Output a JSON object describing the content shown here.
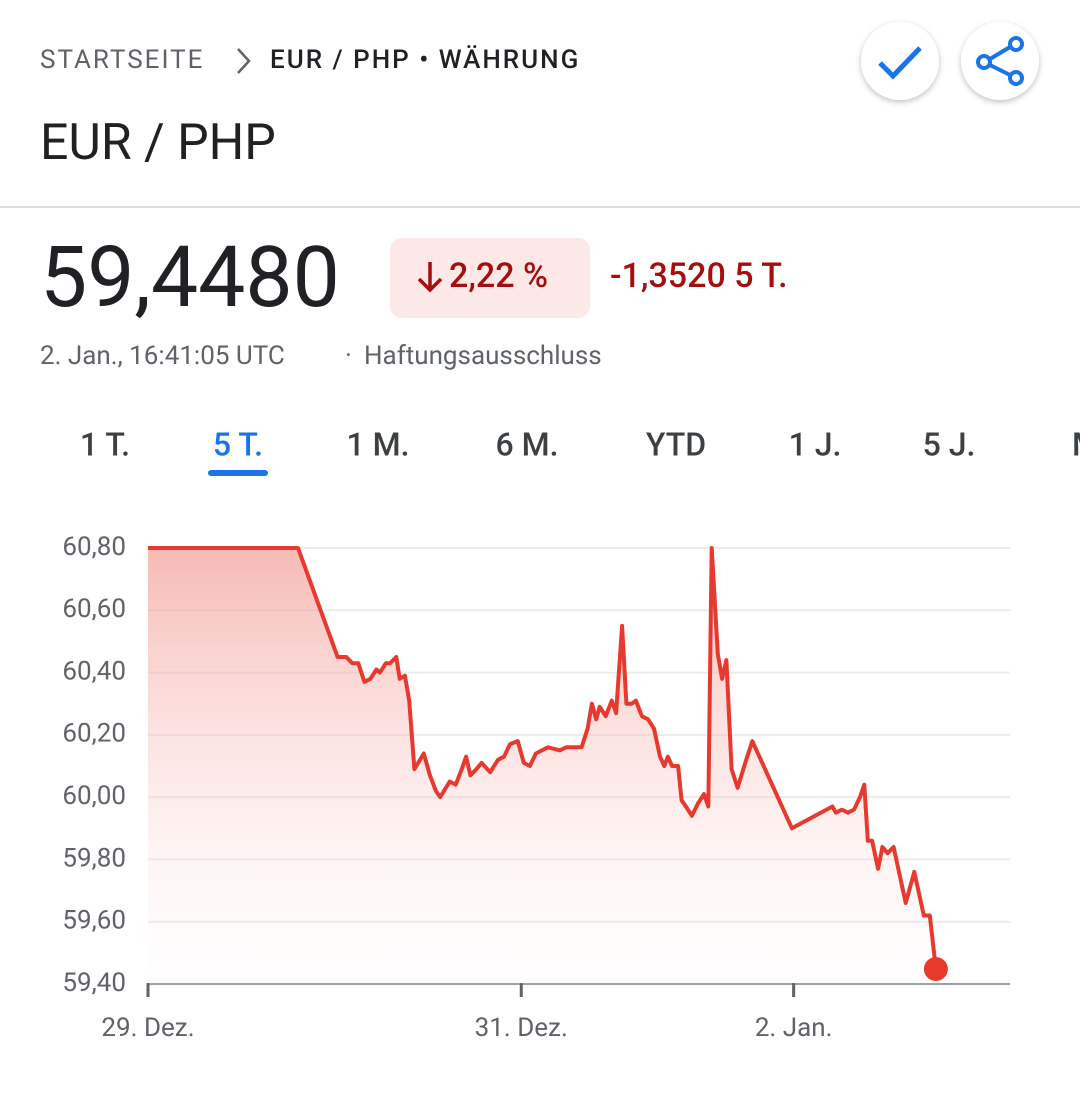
{
  "breadcrumb": {
    "home": "STARTSEITE",
    "current": "EUR / PHP • WÄHRUNG"
  },
  "title": "EUR / PHP",
  "price": "59,4480",
  "change_percent": "2,22 %",
  "change_abs": "-1,3520 5 T.",
  "timestamp": "2. Jan., 16:41:05 UTC",
  "disclaimer": "Haftungsausschluss",
  "tabs": [
    "1 T.",
    "5 T.",
    "1 M.",
    "6 M.",
    "YTD",
    "1 J.",
    "5 J.",
    "M"
  ],
  "selected_tab": 1,
  "chart_data": {
    "type": "line",
    "color": "#e8392f",
    "grid": true,
    "xlim": [
      0,
      100
    ],
    "xticks": [
      {
        "value": 0,
        "label": "29. Dez."
      },
      {
        "value": 43.3,
        "label": "31. Dez."
      },
      {
        "value": 74.9,
        "label": "2. Jan."
      }
    ],
    "ylim": [
      59.4,
      60.8
    ],
    "yticks": [
      {
        "value": 59.4,
        "label": "59,40"
      },
      {
        "value": 59.6,
        "label": "59,60"
      },
      {
        "value": 59.8,
        "label": "59,80"
      },
      {
        "value": 60.0,
        "label": "60,00"
      },
      {
        "value": 60.2,
        "label": "60,20"
      },
      {
        "value": 60.4,
        "label": "60,40"
      },
      {
        "value": 60.6,
        "label": "60,60"
      },
      {
        "value": 60.8,
        "label": "60,80"
      }
    ],
    "x": [
      0,
      17.4,
      22.0,
      23.0,
      23.7,
      24.4,
      25.1,
      25.8,
      26.5,
      26.9,
      27.6,
      28.1,
      28.8,
      29.2,
      29.8,
      30.3,
      30.9,
      32.0,
      32.7,
      33.4,
      33.9,
      35.0,
      35.7,
      36.4,
      36.9,
      37.4,
      38.1,
      38.7,
      39.7,
      40.6,
      41.3,
      42.0,
      42.9,
      43.6,
      44.3,
      45.0,
      45.7,
      46.4,
      47.8,
      48.5,
      49.9,
      50.3,
      51.0,
      51.5,
      52.0,
      52.4,
      53.1,
      53.8,
      54.3,
      55.0,
      55.5,
      56.1,
      56.6,
      57.3,
      58.0,
      58.7,
      59.4,
      59.9,
      60.3,
      60.8,
      61.5,
      61.9,
      62.4,
      63.1,
      63.8,
      64.5,
      65.0,
      65.4,
      66.1,
      66.6,
      67.1,
      67.7,
      68.4,
      69.4,
      70.1,
      74.7,
      79.4,
      79.8,
      80.5,
      81.2,
      81.9,
      82.6,
      83.1,
      83.5,
      84.0,
      84.7,
      85.2,
      85.8,
      86.5,
      87.9,
      88.9,
      90.0,
      90.7,
      91.4
    ],
    "values": [
      60.8,
      60.8,
      60.45,
      60.45,
      60.43,
      60.43,
      60.37,
      60.38,
      60.41,
      60.4,
      60.43,
      60.43,
      60.45,
      60.38,
      60.39,
      60.31,
      60.09,
      60.14,
      60.07,
      60.02,
      60.0,
      60.05,
      60.04,
      60.09,
      60.13,
      60.07,
      60.09,
      60.11,
      60.08,
      60.12,
      60.13,
      60.17,
      60.18,
      60.11,
      60.1,
      60.14,
      60.15,
      60.16,
      60.15,
      60.16,
      60.16,
      60.16,
      60.22,
      60.3,
      60.25,
      60.29,
      60.26,
      60.31,
      60.27,
      60.55,
      60.3,
      60.3,
      60.31,
      60.26,
      60.25,
      60.22,
      60.13,
      60.1,
      60.13,
      60.1,
      60.1,
      59.99,
      59.97,
      59.94,
      59.98,
      60.01,
      59.97,
      60.8,
      60.46,
      60.38,
      60.44,
      60.09,
      60.03,
      60.12,
      60.18,
      59.9,
      59.97,
      59.95,
      59.96,
      59.95,
      59.96,
      60.0,
      60.04,
      59.86,
      59.86,
      59.77,
      59.84,
      59.82,
      59.84,
      59.66,
      59.76,
      59.62,
      59.62,
      59.448
    ]
  }
}
